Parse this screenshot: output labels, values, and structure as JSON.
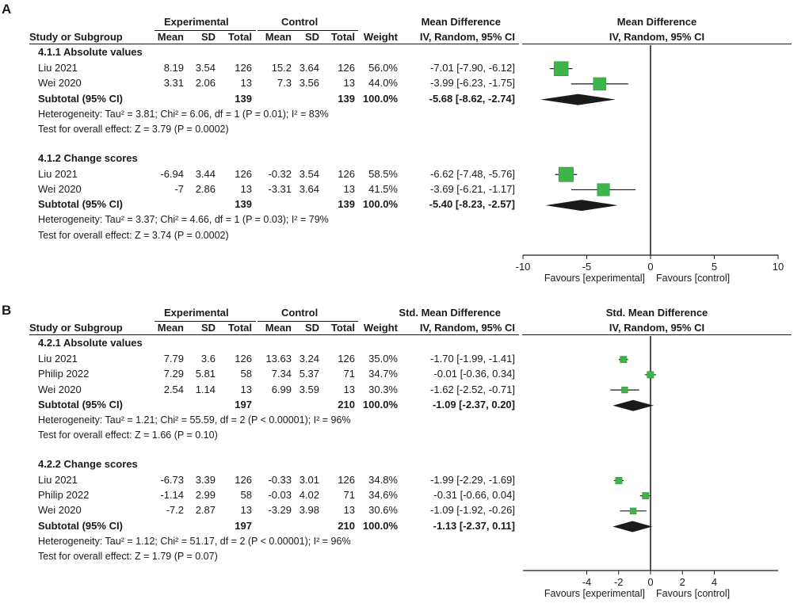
{
  "chart_data": [
    {
      "panel": "A",
      "type": "forest",
      "effect_header": "Mean Difference",
      "method": "IV, Random, 95% CI",
      "plot_header": "Mean Difference",
      "plot_method": "IV, Random, 95% CI",
      "group_headers": {
        "experimental": "Experimental",
        "control": "Control"
      },
      "columns": {
        "study": "Study or Subgroup",
        "mean": "Mean",
        "sd": "SD",
        "total": "Total",
        "weight": "Weight"
      },
      "xlim": [
        -10,
        10
      ],
      "ticks": [
        "-10",
        "-5",
        "0",
        "5",
        "10"
      ],
      "tick_values": [
        -10,
        -5,
        0,
        5,
        10
      ],
      "favours_left": "Favours [experimental]",
      "favours_right": "Favours [control]",
      "subgroups": [
        {
          "title": "4.1.1 Absolute values",
          "studies": [
            {
              "name": "Liu 2021",
              "exp_mean": "8.19",
              "exp_sd": "3.54",
              "exp_total": "126",
              "ctl_mean": "15.2",
              "ctl_sd": "3.64",
              "ctl_total": "126",
              "weight": "56.0%",
              "ci_text": "-7.01 [-7.90, -6.12]",
              "est": -7.01,
              "lo": -7.9,
              "hi": -6.12,
              "w": 56.0
            },
            {
              "name": "Wei 2020",
              "exp_mean": "3.31",
              "exp_sd": "2.06",
              "exp_total": "13",
              "ctl_mean": "7.3",
              "ctl_sd": "3.56",
              "ctl_total": "13",
              "weight": "44.0%",
              "ci_text": "-3.99 [-6.23, -1.75]",
              "est": -3.99,
              "lo": -6.23,
              "hi": -1.75,
              "w": 44.0
            }
          ],
          "subtotal": {
            "label": "Subtotal (95% CI)",
            "exp_total": "139",
            "ctl_total": "139",
            "weight": "100.0%",
            "ci_text": "-5.68 [-8.62, -2.74]",
            "est": -5.68,
            "lo": -8.62,
            "hi": -2.74
          },
          "heterogeneity": "Heterogeneity: Tau² = 3.81; Chi² = 6.06, df = 1 (P = 0.01); I² = 83%",
          "overall": "Test for overall effect: Z = 3.79 (P = 0.0002)"
        },
        {
          "title": "4.1.2 Change scores",
          "studies": [
            {
              "name": "Liu 2021",
              "exp_mean": "-6.94",
              "exp_sd": "3.44",
              "exp_total": "126",
              "ctl_mean": "-0.32",
              "ctl_sd": "3.54",
              "ctl_total": "126",
              "weight": "58.5%",
              "ci_text": "-6.62 [-7.48, -5.76]",
              "est": -6.62,
              "lo": -7.48,
              "hi": -5.76,
              "w": 58.5
            },
            {
              "name": "Wei 2020",
              "exp_mean": "-7",
              "exp_sd": "2.86",
              "exp_total": "13",
              "ctl_mean": "-3.31",
              "ctl_sd": "3.64",
              "ctl_total": "13",
              "weight": "41.5%",
              "ci_text": "-3.69 [-6.21, -1.17]",
              "est": -3.69,
              "lo": -6.21,
              "hi": -1.17,
              "w": 41.5
            }
          ],
          "subtotal": {
            "label": "Subtotal (95% CI)",
            "exp_total": "139",
            "ctl_total": "139",
            "weight": "100.0%",
            "ci_text": "-5.40 [-8.23, -2.57]",
            "est": -5.4,
            "lo": -8.23,
            "hi": -2.57
          },
          "heterogeneity": "Heterogeneity: Tau² = 3.37; Chi² = 4.66, df = 1 (P = 0.03); I² = 79%",
          "overall": "Test for overall effect: Z = 3.74 (P = 0.0002)"
        }
      ]
    },
    {
      "panel": "B",
      "type": "forest",
      "effect_header": "Std. Mean Difference",
      "method": "IV, Random, 95% CI",
      "plot_header": "Std. Mean Difference",
      "plot_method": "IV, Random, 95% CI",
      "group_headers": {
        "experimental": "Experimental",
        "control": "Control"
      },
      "columns": {
        "study": "Study or Subgroup",
        "mean": "Mean",
        "sd": "SD",
        "total": "Total",
        "weight": "Weight"
      },
      "xlim": [
        -8,
        8
      ],
      "ticks": [
        "-4",
        "-2",
        "0",
        "2",
        "4"
      ],
      "tick_values": [
        -4,
        -2,
        0,
        2,
        4
      ],
      "favours_left": "Favours [experimental]",
      "favours_right": "Favours [control]",
      "subgroups": [
        {
          "title": "4.2.1 Absolute values",
          "studies": [
            {
              "name": "Liu 2021",
              "exp_mean": "7.79",
              "exp_sd": "3.6",
              "exp_total": "126",
              "ctl_mean": "13.63",
              "ctl_sd": "3.24",
              "ctl_total": "126",
              "weight": "35.0%",
              "ci_text": "-1.70 [-1.99, -1.41]",
              "est": -1.7,
              "lo": -1.99,
              "hi": -1.41,
              "w": 35.0
            },
            {
              "name": "Philip 2022",
              "exp_mean": "7.29",
              "exp_sd": "5.81",
              "exp_total": "58",
              "ctl_mean": "7.34",
              "ctl_sd": "5.37",
              "ctl_total": "71",
              "weight": "34.7%",
              "ci_text": "-0.01 [-0.36, 0.34]",
              "est": -0.01,
              "lo": -0.36,
              "hi": 0.34,
              "w": 34.7
            },
            {
              "name": "Wei 2020",
              "exp_mean": "2.54",
              "exp_sd": "1.14",
              "exp_total": "13",
              "ctl_mean": "6.99",
              "ctl_sd": "3.59",
              "ctl_total": "13",
              "weight": "30.3%",
              "ci_text": "-1.62 [-2.52, -0.71]",
              "est": -1.62,
              "lo": -2.52,
              "hi": -0.71,
              "w": 30.3
            }
          ],
          "subtotal": {
            "label": "Subtotal (95% CI)",
            "exp_total": "197",
            "ctl_total": "210",
            "weight": "100.0%",
            "ci_text": "-1.09 [-2.37, 0.20]",
            "est": -1.09,
            "lo": -2.37,
            "hi": 0.2
          },
          "heterogeneity": "Heterogeneity: Tau² = 1.21; Chi² = 55.59, df = 2 (P < 0.00001); I² = 96%",
          "overall": "Test for overall effect: Z = 1.66 (P = 0.10)"
        },
        {
          "title": "4.2.2 Change scores",
          "studies": [
            {
              "name": "Liu 2021",
              "exp_mean": "-6.73",
              "exp_sd": "3.39",
              "exp_total": "126",
              "ctl_mean": "-0.33",
              "ctl_sd": "3.01",
              "ctl_total": "126",
              "weight": "34.8%",
              "ci_text": "-1.99 [-2.29, -1.69]",
              "est": -1.99,
              "lo": -2.29,
              "hi": -1.69,
              "w": 34.8
            },
            {
              "name": "Philip 2022",
              "exp_mean": "-1.14",
              "exp_sd": "2.99",
              "exp_total": "58",
              "ctl_mean": "-0.03",
              "ctl_sd": "4.02",
              "ctl_total": "71",
              "weight": "34.6%",
              "ci_text": "-0.31 [-0.66, 0.04]",
              "est": -0.31,
              "lo": -0.66,
              "hi": 0.04,
              "w": 34.6
            },
            {
              "name": "Wei 2020",
              "exp_mean": "-7.2",
              "exp_sd": "2.87",
              "exp_total": "13",
              "ctl_mean": "-3.29",
              "ctl_sd": "3.98",
              "ctl_total": "13",
              "weight": "30.6%",
              "ci_text": "-1.09 [-1.92, -0.26]",
              "est": -1.09,
              "lo": -1.92,
              "hi": -0.26,
              "w": 30.6
            }
          ],
          "subtotal": {
            "label": "Subtotal (95% CI)",
            "exp_total": "197",
            "ctl_total": "210",
            "weight": "100.0%",
            "ci_text": "-1.13 [-2.37, 0.11]",
            "est": -1.13,
            "lo": -2.37,
            "hi": 0.11
          },
          "heterogeneity": "Heterogeneity: Tau² = 1.12; Chi² = 51.17, df = 2 (P < 0.00001); I² = 96%",
          "overall": "Test for overall effect: Z = 1.79 (P = 0.07)"
        }
      ]
    }
  ],
  "panels": {
    "a": "A",
    "b": "B"
  },
  "colors": {
    "square": "#3cb44a",
    "square_border": "#2e8b39",
    "diamond": "#1a1a1a",
    "axis": "#1a1a1a"
  }
}
